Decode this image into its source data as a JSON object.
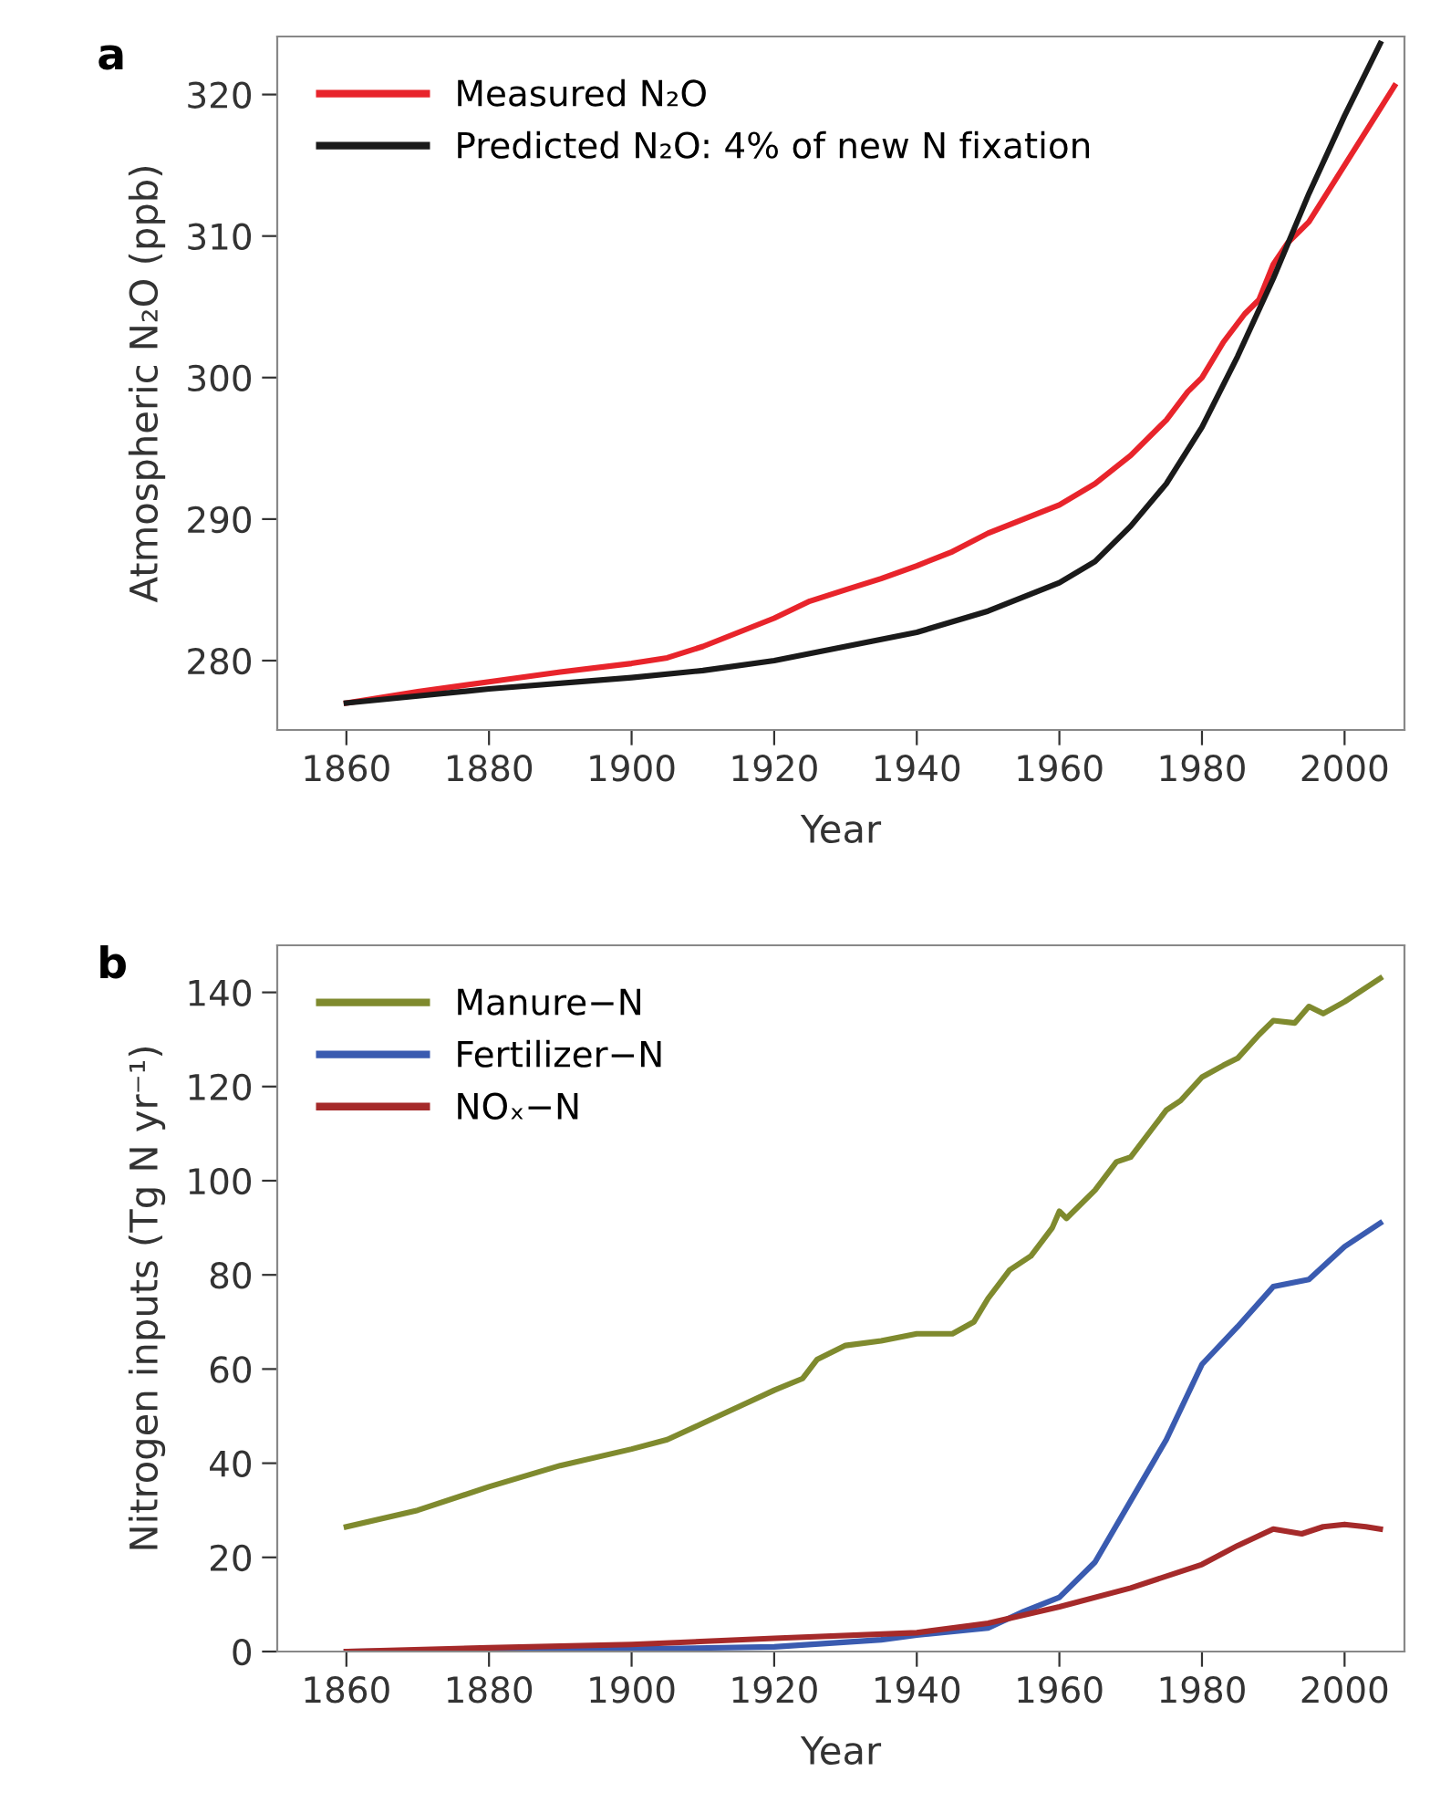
{
  "chart_data": [
    {
      "type": "line",
      "annotations": [
        "a"
      ],
      "xlabel": "Year",
      "ylabel": "Atmospheric N₂O (ppb)",
      "xlim": [
        1850.3,
        2008.4
      ],
      "xticks": [
        1860,
        1880,
        1900,
        1920,
        1940,
        1960,
        1980,
        2000
      ],
      "ylim": [
        275.1,
        324.1
      ],
      "yticks": [
        280,
        290,
        300,
        310,
        320
      ],
      "grid": false,
      "legend": "top left",
      "marker": "none",
      "line_style": "solid",
      "series": [
        {
          "name": "Measured N₂O",
          "color": "#e8242b",
          "x": [
            1860,
            1870,
            1880,
            1890,
            1900,
            1905,
            1910,
            1915,
            1920,
            1925,
            1930,
            1935,
            1940,
            1945,
            1950,
            1955,
            1960,
            1965,
            1970,
            1975,
            1978,
            1980,
            1983,
            1986,
            1988,
            1990,
            1992,
            1995,
            2000,
            2005,
            2007
          ],
          "values": [
            277,
            277.8,
            278.5,
            279.2,
            279.8,
            280.2,
            281,
            282,
            283,
            284.2,
            285,
            285.8,
            286.7,
            287.7,
            289,
            290,
            291,
            292.5,
            294.5,
            297,
            299,
            300,
            302.5,
            304.5,
            305.5,
            308,
            309.5,
            311,
            315,
            319,
            320.6
          ]
        },
        {
          "name": "Predicted N₂O: 4% of new N fixation",
          "color": "#1a1a1a",
          "x": [
            1860,
            1880,
            1900,
            1910,
            1920,
            1930,
            1940,
            1950,
            1955,
            1960,
            1965,
            1970,
            1975,
            1980,
            1985,
            1990,
            1995,
            2000,
            2005
          ],
          "values": [
            277,
            278,
            278.8,
            279.3,
            280,
            281,
            282,
            283.5,
            284.5,
            285.5,
            287,
            289.5,
            292.5,
            296.5,
            301.5,
            307,
            313,
            318.5,
            323.6
          ]
        }
      ]
    },
    {
      "type": "line",
      "annotations": [
        "b"
      ],
      "xlabel": "Year",
      "ylabel": "Nitrogen inputs (Tg N yr⁻¹)",
      "xlim": [
        1850.3,
        2008.4
      ],
      "xticks": [
        1860,
        1880,
        1900,
        1920,
        1940,
        1960,
        1980,
        2000
      ],
      "ylim": [
        0,
        150
      ],
      "yticks": [
        0,
        20,
        40,
        60,
        80,
        100,
        120,
        140
      ],
      "grid": false,
      "legend": "top left",
      "marker": "none",
      "line_style": "solid",
      "series": [
        {
          "name": "Manure−N",
          "color": "#7f8a2e",
          "x": [
            1860,
            1870,
            1880,
            1890,
            1900,
            1905,
            1910,
            1915,
            1920,
            1924,
            1926,
            1930,
            1935,
            1940,
            1945,
            1948,
            1950,
            1953,
            1956,
            1959,
            1960,
            1961,
            1965,
            1968,
            1970,
            1973,
            1975,
            1977,
            1980,
            1983,
            1985,
            1988,
            1990,
            1993,
            1995,
            1997,
            2000,
            2005
          ],
          "values": [
            26.5,
            30,
            35,
            39.5,
            43,
            45,
            48.5,
            52,
            55.5,
            58,
            62,
            65,
            66,
            67.5,
            67.5,
            70,
            75,
            81,
            84,
            90,
            93.5,
            92,
            98,
            104,
            105,
            111,
            115,
            117,
            122,
            124.5,
            126,
            131,
            134,
            133.5,
            137,
            135.5,
            138,
            143
          ]
        },
        {
          "name": "Fertilizer−N",
          "color": "#3a5bb0",
          "x": [
            1860,
            1900,
            1920,
            1935,
            1940,
            1950,
            1955,
            1960,
            1965,
            1970,
            1975,
            1980,
            1985,
            1990,
            1995,
            2000,
            2005
          ],
          "values": [
            0,
            0.5,
            1,
            2.5,
            3.5,
            5,
            8.5,
            11.5,
            19,
            32,
            45,
            61,
            69,
            77.5,
            79,
            86,
            91
          ]
        },
        {
          "name": "NOₓ−N",
          "color": "#a52a2a",
          "x": [
            1860,
            1880,
            1900,
            1920,
            1940,
            1950,
            1960,
            1970,
            1980,
            1985,
            1990,
            1994,
            1997,
            2000,
            2003,
            2005
          ],
          "values": [
            0,
            0.8,
            1.5,
            2.8,
            4,
            6,
            9.5,
            13.5,
            18.5,
            22.5,
            26,
            25,
            26.5,
            27,
            26.5,
            26
          ]
        }
      ]
    }
  ]
}
